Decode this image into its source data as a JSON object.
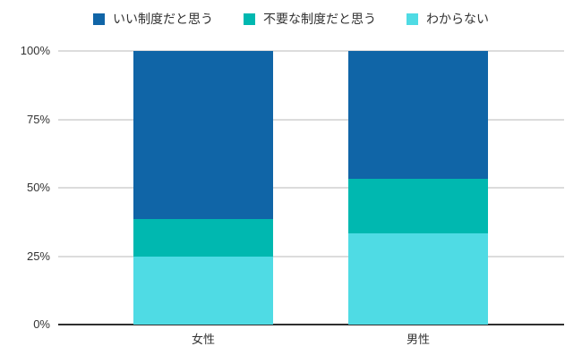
{
  "chart_data": {
    "type": "bar",
    "stacked": true,
    "orientation": "vertical",
    "categories": [
      "女性",
      "男性"
    ],
    "series": [
      {
        "name": "いい制度だと思う",
        "color": "#1065A7",
        "values": [
          61.5,
          46.7
        ]
      },
      {
        "name": "不要な制度だと思う",
        "color": "#00B8B0",
        "values": [
          13.8,
          20.0
        ]
      },
      {
        "name": "わからない",
        "color": "#4FDBE4",
        "values": [
          24.7,
          33.3
        ]
      }
    ],
    "value_unit": "%",
    "ylim": [
      0,
      100
    ],
    "yticks": [
      0,
      25,
      50,
      75,
      100
    ],
    "ytick_labels": [
      "0%",
      "25%",
      "50%",
      "75%",
      "100%"
    ],
    "grid": true,
    "legend_position": "top",
    "colors": {
      "gridline": "#dcdcdc",
      "axis_line": "#2f2f2f",
      "text": "#333333",
      "background": "#ffffff"
    }
  }
}
